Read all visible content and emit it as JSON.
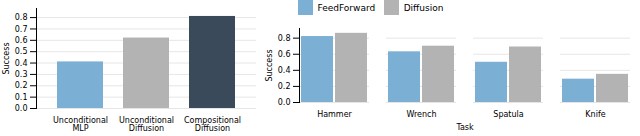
{
  "chart_data": [
    {
      "type": "bar",
      "categories": [
        "Unconditional\nMLP",
        "Unconditional\nDiffusion",
        "Compositional\nDiffusion"
      ],
      "values": [
        0.41,
        0.62,
        0.81
      ],
      "colors": [
        "#7bafd4",
        "#b3b3b3",
        "#3b4a5a"
      ],
      "ylabel": "Success",
      "ylim": [
        0.0,
        0.88
      ],
      "yticks": [
        {
          "value": 0.0,
          "label": "0.0"
        },
        0.1,
        0.2,
        0.3,
        0.4,
        0.5,
        0.6,
        0.7,
        0.8
      ],
      "grid": true
    },
    {
      "type": "bar",
      "categories": [
        "Hammer",
        "Wrench",
        "Spatula",
        "Knife"
      ],
      "series": [
        {
          "name": "FeedForward",
          "color": "#7bafd4",
          "values": [
            0.82,
            0.63,
            0.5,
            0.29
          ]
        },
        {
          "name": "Diffusion",
          "color": "#b3b3b3",
          "values": [
            0.86,
            0.7,
            0.69,
            0.35
          ]
        }
      ],
      "xlabel": "Task",
      "ylabel": "Success",
      "ylim": [
        0.0,
        0.92
      ],
      "yticks": [
        {
          "value": 0.0,
          "label": "0.0"
        },
        0.2,
        0.4,
        0.6,
        0.8
      ],
      "grid": true,
      "legend": "upper left"
    }
  ]
}
